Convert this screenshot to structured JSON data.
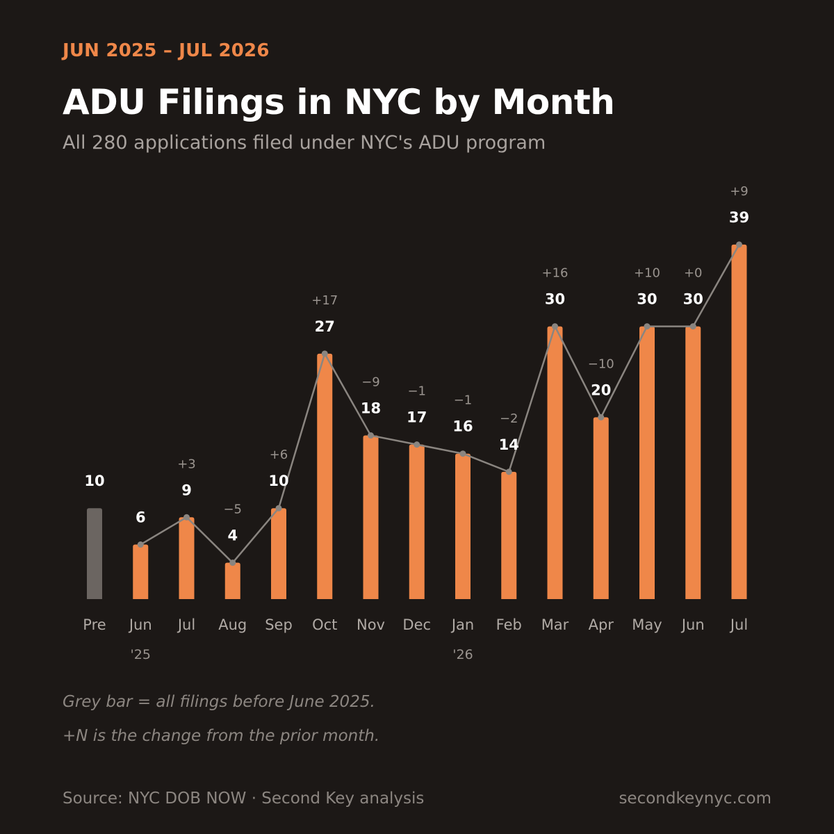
{
  "header": {
    "eyebrow": "JUN 2025 – JUL 2026",
    "title": "ADU Filings in NYC by Month",
    "subtitle": "All 280 applications filed under NYC's ADU program"
  },
  "notes": {
    "grey_bar": "Grey bar = all filings before June 2025.",
    "change": "+N is the change from the prior month."
  },
  "footer": {
    "source": "Source: NYC DOB NOW · Second Key analysis",
    "site": "secondkeynyc.com"
  },
  "colors": {
    "background": "#1c1816",
    "accent": "#ef8749",
    "pre_bar": "#6b6561",
    "line": "#8a8580",
    "value_label": "#ffffff",
    "change_label": "#9a948f",
    "tick_label": "#b0aaa5"
  },
  "chart_data": {
    "type": "bar",
    "categories": [
      "Pre",
      "Jun",
      "Jul",
      "Aug",
      "Sep",
      "Oct",
      "Nov",
      "Dec",
      "Jan",
      "Feb",
      "Mar",
      "Apr",
      "May",
      "Jun",
      "Jul"
    ],
    "year_labels": [
      "",
      "'25",
      "",
      "",
      "",
      "",
      "",
      "",
      "'26",
      "",
      "",
      "",
      "",
      "",
      ""
    ],
    "values": [
      10,
      6,
      9,
      4,
      10,
      27,
      18,
      17,
      16,
      14,
      30,
      20,
      30,
      30,
      39
    ],
    "changes": [
      "",
      "",
      "+3",
      "−5",
      "+6",
      "+17",
      "−9",
      "−1",
      "−1",
      "−2",
      "+16",
      "−10",
      "+10",
      "+0",
      "+9"
    ],
    "highlight_first_as_pre": true,
    "line_overlay": {
      "from_index": 1,
      "to_index": 14
    },
    "ylim": [
      0,
      39
    ],
    "grid": false,
    "legend": "none"
  }
}
